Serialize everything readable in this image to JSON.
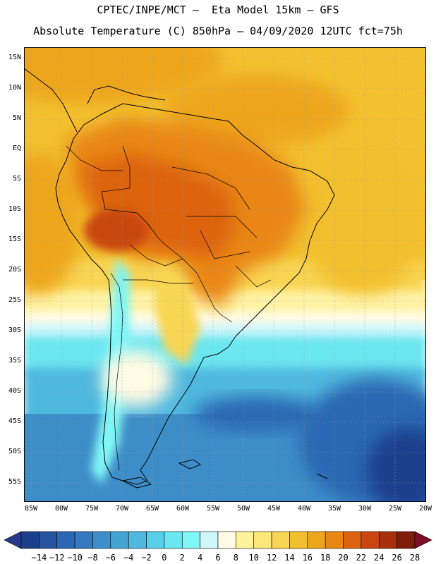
{
  "header": {
    "line1": "CPTEC/INPE/MCT –  Eta Model 15km – GFS",
    "line2": "Absolute Temperature (C) 850hPa – 04/09/2020 12UTC fct=75h"
  },
  "map": {
    "region": "South America",
    "lat_labels": [
      "15N",
      "10N",
      "5N",
      "EQ",
      "5S",
      "10S",
      "15S",
      "20S",
      "25S",
      "30S",
      "35S",
      "40S",
      "45S",
      "50S",
      "55S"
    ],
    "lon_labels": [
      "85W",
      "80W",
      "75W",
      "70W",
      "65W",
      "60W",
      "55W",
      "50W",
      "45W",
      "40W",
      "35W",
      "30W",
      "25W",
      "20W"
    ]
  },
  "colorbar": {
    "labels": [
      "-14",
      "-12",
      "-10",
      "-8",
      "-6",
      "-4",
      "-2",
      "0",
      "2",
      "4",
      "6",
      "8",
      "10",
      "12",
      "14",
      "16",
      "18",
      "20",
      "22",
      "24",
      "26",
      "28"
    ],
    "colors": [
      "#1c3f8c",
      "#2553a0",
      "#2b67b2",
      "#3479be",
      "#3d8ec8",
      "#45a3d3",
      "#4fb8df",
      "#58cfe9",
      "#6ae6f0",
      "#80f6f6",
      "#cff6fb",
      "#fffbe4",
      "#fff39c",
      "#fde67a",
      "#f8d553",
      "#f2bf2f",
      "#eda61a",
      "#e98714",
      "#dd6310",
      "#c9460e",
      "#a8300c",
      "#7f1d0b"
    ],
    "under_color": "#233a8a",
    "over_color": "#7e0d26"
  }
}
